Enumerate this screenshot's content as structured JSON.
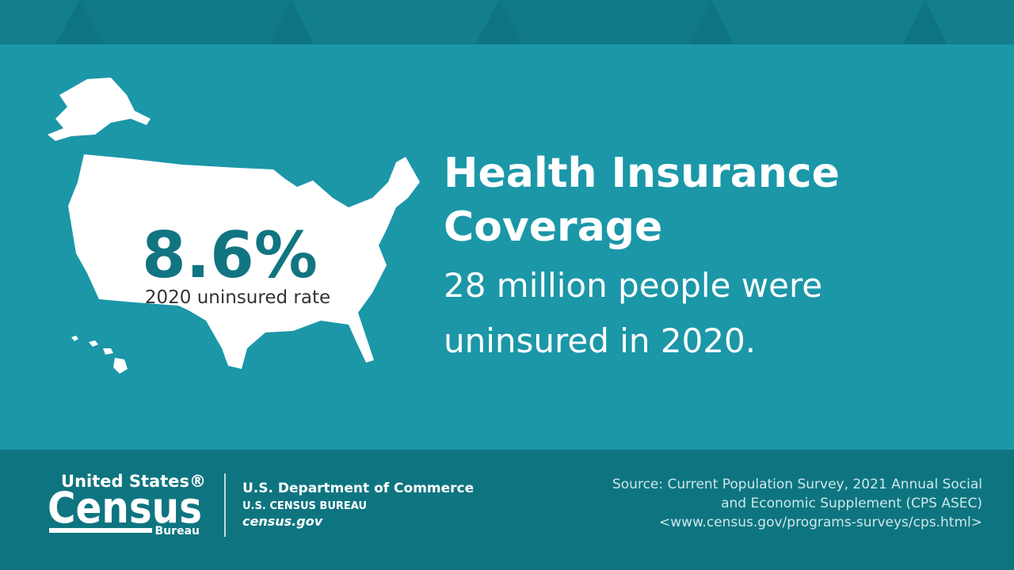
{
  "stat": {
    "value": "8.6%",
    "label": "2020 uninsured rate"
  },
  "headline": {
    "title_lines": [
      "Health Insurance",
      "Coverage"
    ],
    "body_lines": [
      "28 million people were",
      "uninsured in 2020."
    ]
  },
  "footer": {
    "logo": {
      "top": "United States®",
      "main": "Census",
      "bottom": "Bureau"
    },
    "department": "U.S. Department of Commerce",
    "bureau": "U.S. CENSUS BUREAU",
    "website": "census.gov",
    "source_lines": [
      "Source: Current Population Survey, 2021 Annual Social",
      "and Economic Supplement (CPS ASEC)",
      "<www.census.gov/programs-surveys/cps.html>"
    ]
  }
}
